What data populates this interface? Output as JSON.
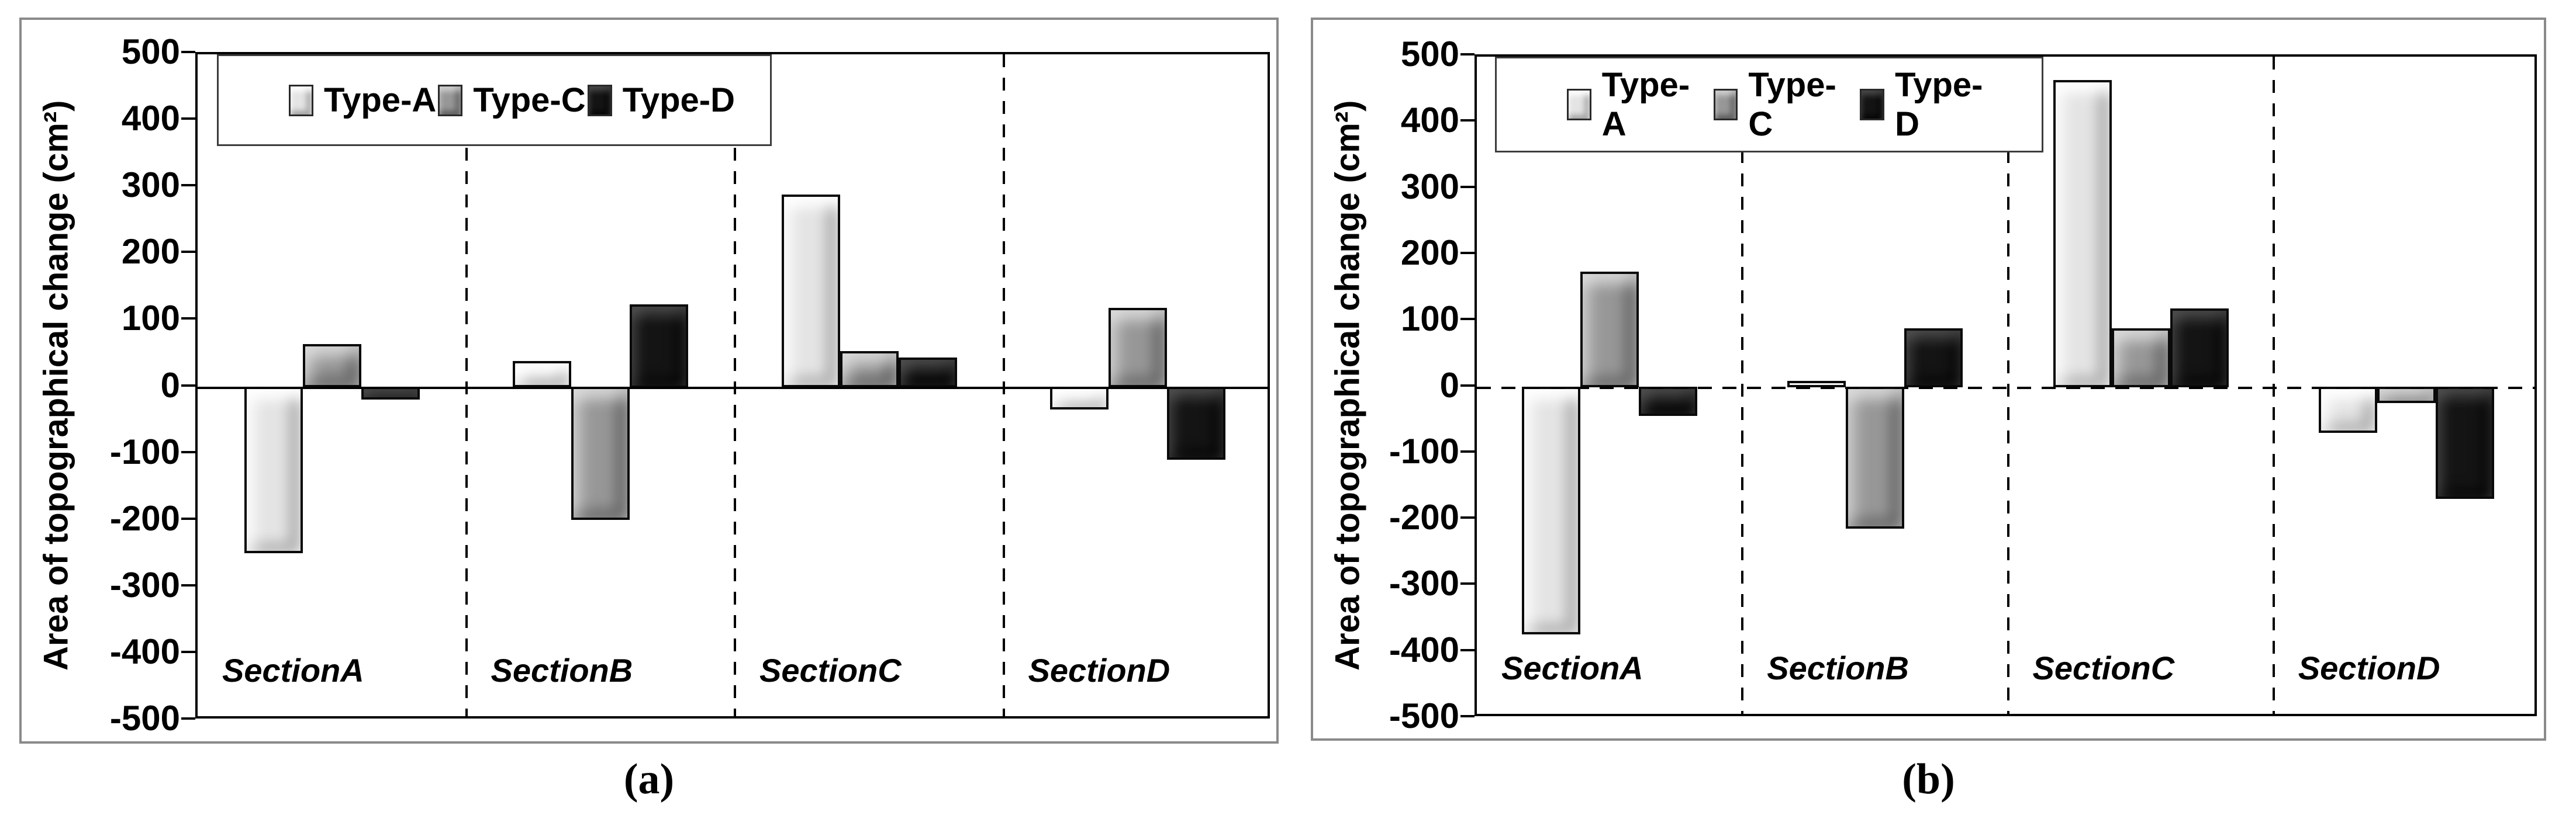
{
  "figure": {
    "captions": [
      "(a)",
      "(b)"
    ]
  },
  "chart_data": [
    {
      "type": "bar",
      "panel": "a",
      "title": "",
      "ylabel": "Area of topographical change (cm²)",
      "xlabel": "",
      "ylim": [
        -500,
        500
      ],
      "yticks": [
        500,
        400,
        300,
        200,
        100,
        0,
        -100,
        -200,
        -300,
        -400,
        -500
      ],
      "categories": [
        "SectionA",
        "SectionB",
        "SectionC",
        "SectionD"
      ],
      "series": [
        {
          "name": "Type-A",
          "color": "#e4e4e4",
          "values": [
            -250,
            40,
            290,
            -35
          ]
        },
        {
          "name": "Type-C",
          "color": "#979797",
          "values": [
            65,
            -200,
            55,
            120
          ]
        },
        {
          "name": "Type-D",
          "color": "#141414",
          "values": [
            -20,
            125,
            45,
            -110
          ]
        }
      ],
      "legend_position": "top-left",
      "zero_line": "solid",
      "grid": "off",
      "section_dividers": "dashed"
    },
    {
      "type": "bar",
      "panel": "b",
      "title": "",
      "ylabel": "Area of topographical change (cm²)",
      "xlabel": "",
      "ylim": [
        -500,
        500
      ],
      "yticks": [
        500,
        400,
        300,
        200,
        100,
        0,
        -100,
        -200,
        -300,
        -400,
        -500
      ],
      "categories": [
        "SectionA",
        "SectionB",
        "SectionC",
        "SectionD"
      ],
      "series": [
        {
          "name": "Type-A",
          "color": "#e4e4e4",
          "values": [
            -375,
            10,
            465,
            -70
          ]
        },
        {
          "name": "Type-C",
          "color": "#979797",
          "values": [
            175,
            -215,
            90,
            -25
          ]
        },
        {
          "name": "Type-D",
          "color": "#141414",
          "values": [
            -45,
            90,
            120,
            -170
          ]
        }
      ],
      "legend_position": "top-left",
      "zero_line": "dashed",
      "grid": "off",
      "section_dividers": "dashed"
    }
  ]
}
